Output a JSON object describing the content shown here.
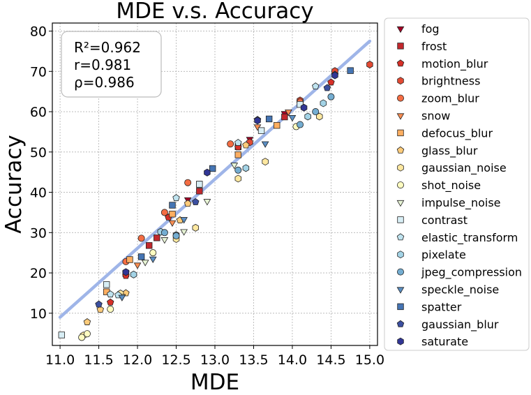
{
  "chart_data": {
    "type": "scatter",
    "title": "MDE  v.s.  Accuracy",
    "xlabel": "MDE",
    "ylabel": "Accuracy",
    "xlim": [
      10.9,
      15.1
    ],
    "ylim": [
      2,
      82
    ],
    "xticks": [
      11.0,
      11.5,
      12.0,
      12.5,
      13.0,
      13.5,
      14.0,
      14.5,
      15.0
    ],
    "yticks": [
      10,
      20,
      30,
      40,
      50,
      60,
      70,
      80
    ],
    "grid": true,
    "legend_position": "outside-right",
    "stats": [
      "R²=0.962",
      "r=0.981",
      "ρ=0.986"
    ],
    "fit_line": {
      "x": [
        11.0,
        15.0
      ],
      "y": [
        9.0,
        77.5
      ],
      "color": "#9fb5e8"
    },
    "series": [
      {
        "name": "fog",
        "marker": "triangle-down",
        "color": "#a50026",
        "points": [
          [
            12.65,
            38.2
          ],
          [
            13.45,
            53.2
          ],
          [
            13.9,
            59.6
          ],
          [
            11.85,
            20.0
          ],
          [
            14.1,
            62.3
          ]
        ]
      },
      {
        "name": "frost",
        "marker": "square",
        "color": "#c2282d",
        "points": [
          [
            12.15,
            26.8
          ],
          [
            12.8,
            40.3
          ],
          [
            13.3,
            51.3
          ],
          [
            11.85,
            19.8
          ],
          [
            12.25,
            28.7
          ],
          [
            13.9,
            58.7
          ],
          [
            12.8,
            42.0
          ]
        ]
      },
      {
        "name": "motion_blur",
        "marker": "pentagon",
        "color": "#d73027",
        "points": [
          [
            11.65,
            12.7
          ],
          [
            12.4,
            33.8
          ],
          [
            13.3,
            51.2
          ],
          [
            14.5,
            67.3
          ],
          [
            11.85,
            19.3
          ]
        ]
      },
      {
        "name": "brightness",
        "marker": "hexagon",
        "color": "#e34a33",
        "points": [
          [
            14.55,
            70.1
          ],
          [
            15.0,
            71.7
          ],
          [
            14.1,
            62.8
          ],
          [
            13.45,
            52.4
          ]
        ]
      },
      {
        "name": "zoom_blur",
        "marker": "circle",
        "color": "#f46d43",
        "points": [
          [
            12.05,
            28.6
          ],
          [
            12.35,
            35.0
          ],
          [
            12.65,
            42.4
          ],
          [
            13.2,
            52.0
          ],
          [
            14.1,
            62.4
          ],
          [
            11.85,
            22.8
          ]
        ]
      },
      {
        "name": "snow",
        "marker": "triangle-down",
        "color": "#f88d52",
        "points": [
          [
            12.45,
            32.5
          ],
          [
            13.55,
            56.3
          ],
          [
            13.95,
            60.0
          ],
          [
            12.0,
            22.0
          ]
        ]
      },
      {
        "name": "defocus_blur",
        "marker": "square",
        "color": "#fdae61",
        "points": [
          [
            11.9,
            23.3
          ],
          [
            12.45,
            34.6
          ],
          [
            13.3,
            49.3
          ],
          [
            13.8,
            56.6
          ],
          [
            11.6,
            15.3
          ]
        ]
      },
      {
        "name": "glass_blur",
        "marker": "pentagon",
        "color": "#fdcb7a",
        "points": [
          [
            11.35,
            7.8
          ],
          [
            11.52,
            10.9
          ],
          [
            11.85,
            15.0
          ],
          [
            12.65,
            37.2
          ],
          [
            13.4,
            51.7
          ],
          [
            12.55,
            33.1
          ]
        ]
      },
      {
        "name": "gaussian_noise",
        "marker": "hexagon",
        "color": "#fee8a0",
        "points": [
          [
            11.3,
            4.5
          ],
          [
            11.78,
            14.9
          ],
          [
            12.5,
            28.4
          ],
          [
            12.75,
            31.2
          ],
          [
            13.3,
            43.4
          ],
          [
            13.65,
            47.6
          ],
          [
            14.35,
            58.8
          ]
        ]
      },
      {
        "name": "shot_noise",
        "marker": "circle",
        "color": "#fefcc0",
        "points": [
          [
            11.28,
            4.0
          ],
          [
            11.35,
            4.9
          ],
          [
            11.65,
            11.0
          ],
          [
            12.2,
            25.0
          ],
          [
            14.05,
            56.3
          ]
        ]
      },
      {
        "name": "impulse_noise",
        "marker": "triangle-down",
        "color": "#e7f4d5",
        "points": [
          [
            11.8,
            14.2
          ],
          [
            12.35,
            28.3
          ],
          [
            12.6,
            30.3
          ],
          [
            12.9,
            37.8
          ],
          [
            13.25,
            46.8
          ],
          [
            12.1,
            22.7
          ]
        ]
      },
      {
        "name": "contrast",
        "marker": "square",
        "color": "#d8eef5",
        "points": [
          [
            11.02,
            4.6
          ],
          [
            11.6,
            17.1
          ],
          [
            12.8,
            42.0
          ],
          [
            13.6,
            55.3
          ],
          [
            14.1,
            61.8
          ]
        ]
      },
      {
        "name": "elastic_transform",
        "marker": "pentagon",
        "color": "#bfe3ef",
        "points": [
          [
            11.65,
            14.7
          ],
          [
            12.5,
            38.6
          ],
          [
            13.3,
            52.3
          ],
          [
            14.3,
            66.3
          ],
          [
            11.75,
            14.5
          ]
        ]
      },
      {
        "name": "pixelate",
        "marker": "hexagon",
        "color": "#a3d3e6",
        "points": [
          [
            11.95,
            19.6
          ],
          [
            12.5,
            29.4
          ],
          [
            13.4,
            46.0
          ],
          [
            14.2,
            58.8
          ],
          [
            14.4,
            62.1
          ],
          [
            12.3,
            30.2
          ]
        ]
      },
      {
        "name": "jpeg_compression",
        "marker": "circle",
        "color": "#74add1",
        "points": [
          [
            12.35,
            30.0
          ],
          [
            13.3,
            45.5
          ],
          [
            14.1,
            56.8
          ],
          [
            14.5,
            63.7
          ],
          [
            14.3,
            60.0
          ],
          [
            12.5,
            29.2
          ]
        ]
      },
      {
        "name": "speckle_noise",
        "marker": "triangle-down",
        "color": "#5b8fc4",
        "points": [
          [
            11.8,
            14.0
          ],
          [
            12.2,
            23.5
          ],
          [
            12.6,
            33.3
          ],
          [
            13.65,
            52.1
          ],
          [
            14.0,
            58.6
          ]
        ]
      },
      {
        "name": "spatter",
        "marker": "square",
        "color": "#4575b4",
        "points": [
          [
            12.05,
            24.0
          ],
          [
            12.45,
            36.8
          ],
          [
            12.97,
            45.9
          ],
          [
            13.7,
            58.2
          ],
          [
            14.75,
            70.2
          ]
        ]
      },
      {
        "name": "gaussian_blur",
        "marker": "pentagon",
        "color": "#3b4fa0",
        "points": [
          [
            11.5,
            12.2
          ],
          [
            12.75,
            37.6
          ],
          [
            13.55,
            58.0
          ],
          [
            14.45,
            65.9
          ],
          [
            14.55,
            69.2
          ]
        ]
      },
      {
        "name": "saturate",
        "marker": "hexagon",
        "color": "#313695",
        "points": [
          [
            11.85,
            20.2
          ],
          [
            12.9,
            44.9
          ],
          [
            13.55,
            57.8
          ],
          [
            14.15,
            61.0
          ],
          [
            14.55,
            69.0
          ]
        ]
      }
    ]
  }
}
